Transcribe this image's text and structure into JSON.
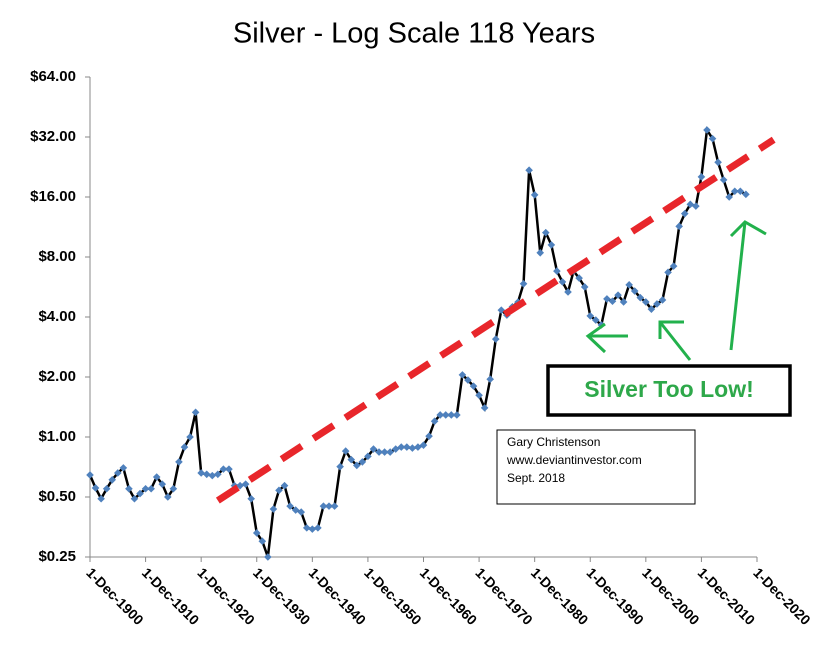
{
  "chart_data": {
    "type": "line",
    "title": "Silver - Log Scale 118 Years",
    "log_scale": true,
    "grid": false,
    "x": [
      1900,
      1901,
      1902,
      1903,
      1904,
      1905,
      1906,
      1907,
      1908,
      1909,
      1910,
      1911,
      1912,
      1913,
      1914,
      1915,
      1916,
      1917,
      1918,
      1919,
      1920,
      1921,
      1922,
      1923,
      1924,
      1925,
      1926,
      1927,
      1928,
      1929,
      1930,
      1931,
      1932,
      1933,
      1934,
      1935,
      1936,
      1937,
      1938,
      1939,
      1940,
      1941,
      1942,
      1943,
      1944,
      1945,
      1946,
      1947,
      1948,
      1949,
      1950,
      1951,
      1952,
      1953,
      1954,
      1955,
      1956,
      1957,
      1958,
      1959,
      1960,
      1961,
      1962,
      1963,
      1964,
      1965,
      1966,
      1967,
      1968,
      1969,
      1970,
      1971,
      1972,
      1973,
      1974,
      1975,
      1976,
      1977,
      1978,
      1979,
      1980,
      1981,
      1982,
      1983,
      1984,
      1985,
      1986,
      1987,
      1988,
      1989,
      1990,
      1991,
      1992,
      1993,
      1994,
      1995,
      1996,
      1997,
      1998,
      1999,
      2000,
      2001,
      2002,
      2003,
      2004,
      2005,
      2006,
      2007,
      2008,
      2009,
      2010,
      2011,
      2012,
      2013,
      2014,
      2015,
      2016,
      2017,
      2018
    ],
    "series": [
      {
        "name": "Silver",
        "color": "#000000",
        "marker_color": "#4f81bd",
        "values": [
          0.645,
          0.555,
          0.49,
          0.55,
          0.61,
          0.66,
          0.7,
          0.55,
          0.49,
          0.52,
          0.55,
          0.55,
          0.63,
          0.58,
          0.5,
          0.55,
          0.75,
          0.89,
          1.0,
          1.33,
          0.66,
          0.65,
          0.64,
          0.65,
          0.69,
          0.69,
          0.57,
          0.57,
          0.58,
          0.49,
          0.33,
          0.3,
          0.25,
          0.435,
          0.54,
          0.57,
          0.45,
          0.43,
          0.42,
          0.35,
          0.345,
          0.35,
          0.45,
          0.45,
          0.45,
          0.71,
          0.85,
          0.77,
          0.72,
          0.75,
          0.8,
          0.87,
          0.84,
          0.84,
          0.84,
          0.87,
          0.89,
          0.89,
          0.88,
          0.89,
          0.91,
          1.01,
          1.2,
          1.29,
          1.29,
          1.29,
          1.29,
          2.05,
          1.93,
          1.8,
          1.62,
          1.4,
          1.95,
          3.1,
          4.33,
          4.09,
          4.5,
          4.75,
          5.87,
          21.8,
          16.4,
          8.4,
          10.6,
          9.2,
          6.8,
          6.0,
          5.34,
          6.8,
          6.27,
          5.66,
          4.05,
          3.86,
          3.65,
          4.93,
          4.8,
          5.15,
          4.76,
          5.8,
          5.4,
          5.0,
          4.76,
          4.38,
          4.65,
          4.87,
          6.7,
          7.2,
          11.4,
          13.2,
          14.7,
          14.4,
          20.2,
          34.7,
          31.4,
          23.9,
          19.5,
          16.0,
          17.1,
          17.1,
          16.5
        ]
      }
    ],
    "trend": {
      "color": "#e8262b",
      "x": [
        1923,
        2023
      ],
      "values": [
        0.48,
        31
      ]
    },
    "xlim": [
      1900,
      2020
    ],
    "xticks": [
      {
        "value": 1900,
        "label": "1-Dec-1900"
      },
      {
        "value": 1910,
        "label": "1-Dec-1910"
      },
      {
        "value": 1920,
        "label": "1-Dec-1920"
      },
      {
        "value": 1930,
        "label": "1-Dec-1930"
      },
      {
        "value": 1940,
        "label": "1-Dec-1940"
      },
      {
        "value": 1950,
        "label": "1-Dec-1950"
      },
      {
        "value": 1960,
        "label": "1-Dec-1960"
      },
      {
        "value": 1970,
        "label": "1-Dec-1970"
      },
      {
        "value": 1980,
        "label": "1-Dec-1980"
      },
      {
        "value": 1990,
        "label": "1-Dec-1990"
      },
      {
        "value": 2000,
        "label": "1-Dec-2000"
      },
      {
        "value": 2010,
        "label": "1-Dec-2010"
      },
      {
        "value": 2020,
        "label": "1-Dec-2020"
      }
    ],
    "ylim": [
      0.25,
      64
    ],
    "yticks": [
      {
        "value": 0.25,
        "label": "$0.25"
      },
      {
        "value": 0.5,
        "label": "$0.50"
      },
      {
        "value": 1,
        "label": "$1.00"
      },
      {
        "value": 2,
        "label": "$2.00"
      },
      {
        "value": 4,
        "label": "$4.00"
      },
      {
        "value": 8,
        "label": "$8.00"
      },
      {
        "value": 16,
        "label": "$16.00"
      },
      {
        "value": 32,
        "label": "$32.00"
      },
      {
        "value": 64,
        "label": "$64.00"
      }
    ],
    "annotations": {
      "credit": [
        "Gary Christenson",
        "www.deviantinvestor.com",
        "Sept. 2018"
      ],
      "callout": "Silver Too Low!"
    }
  }
}
